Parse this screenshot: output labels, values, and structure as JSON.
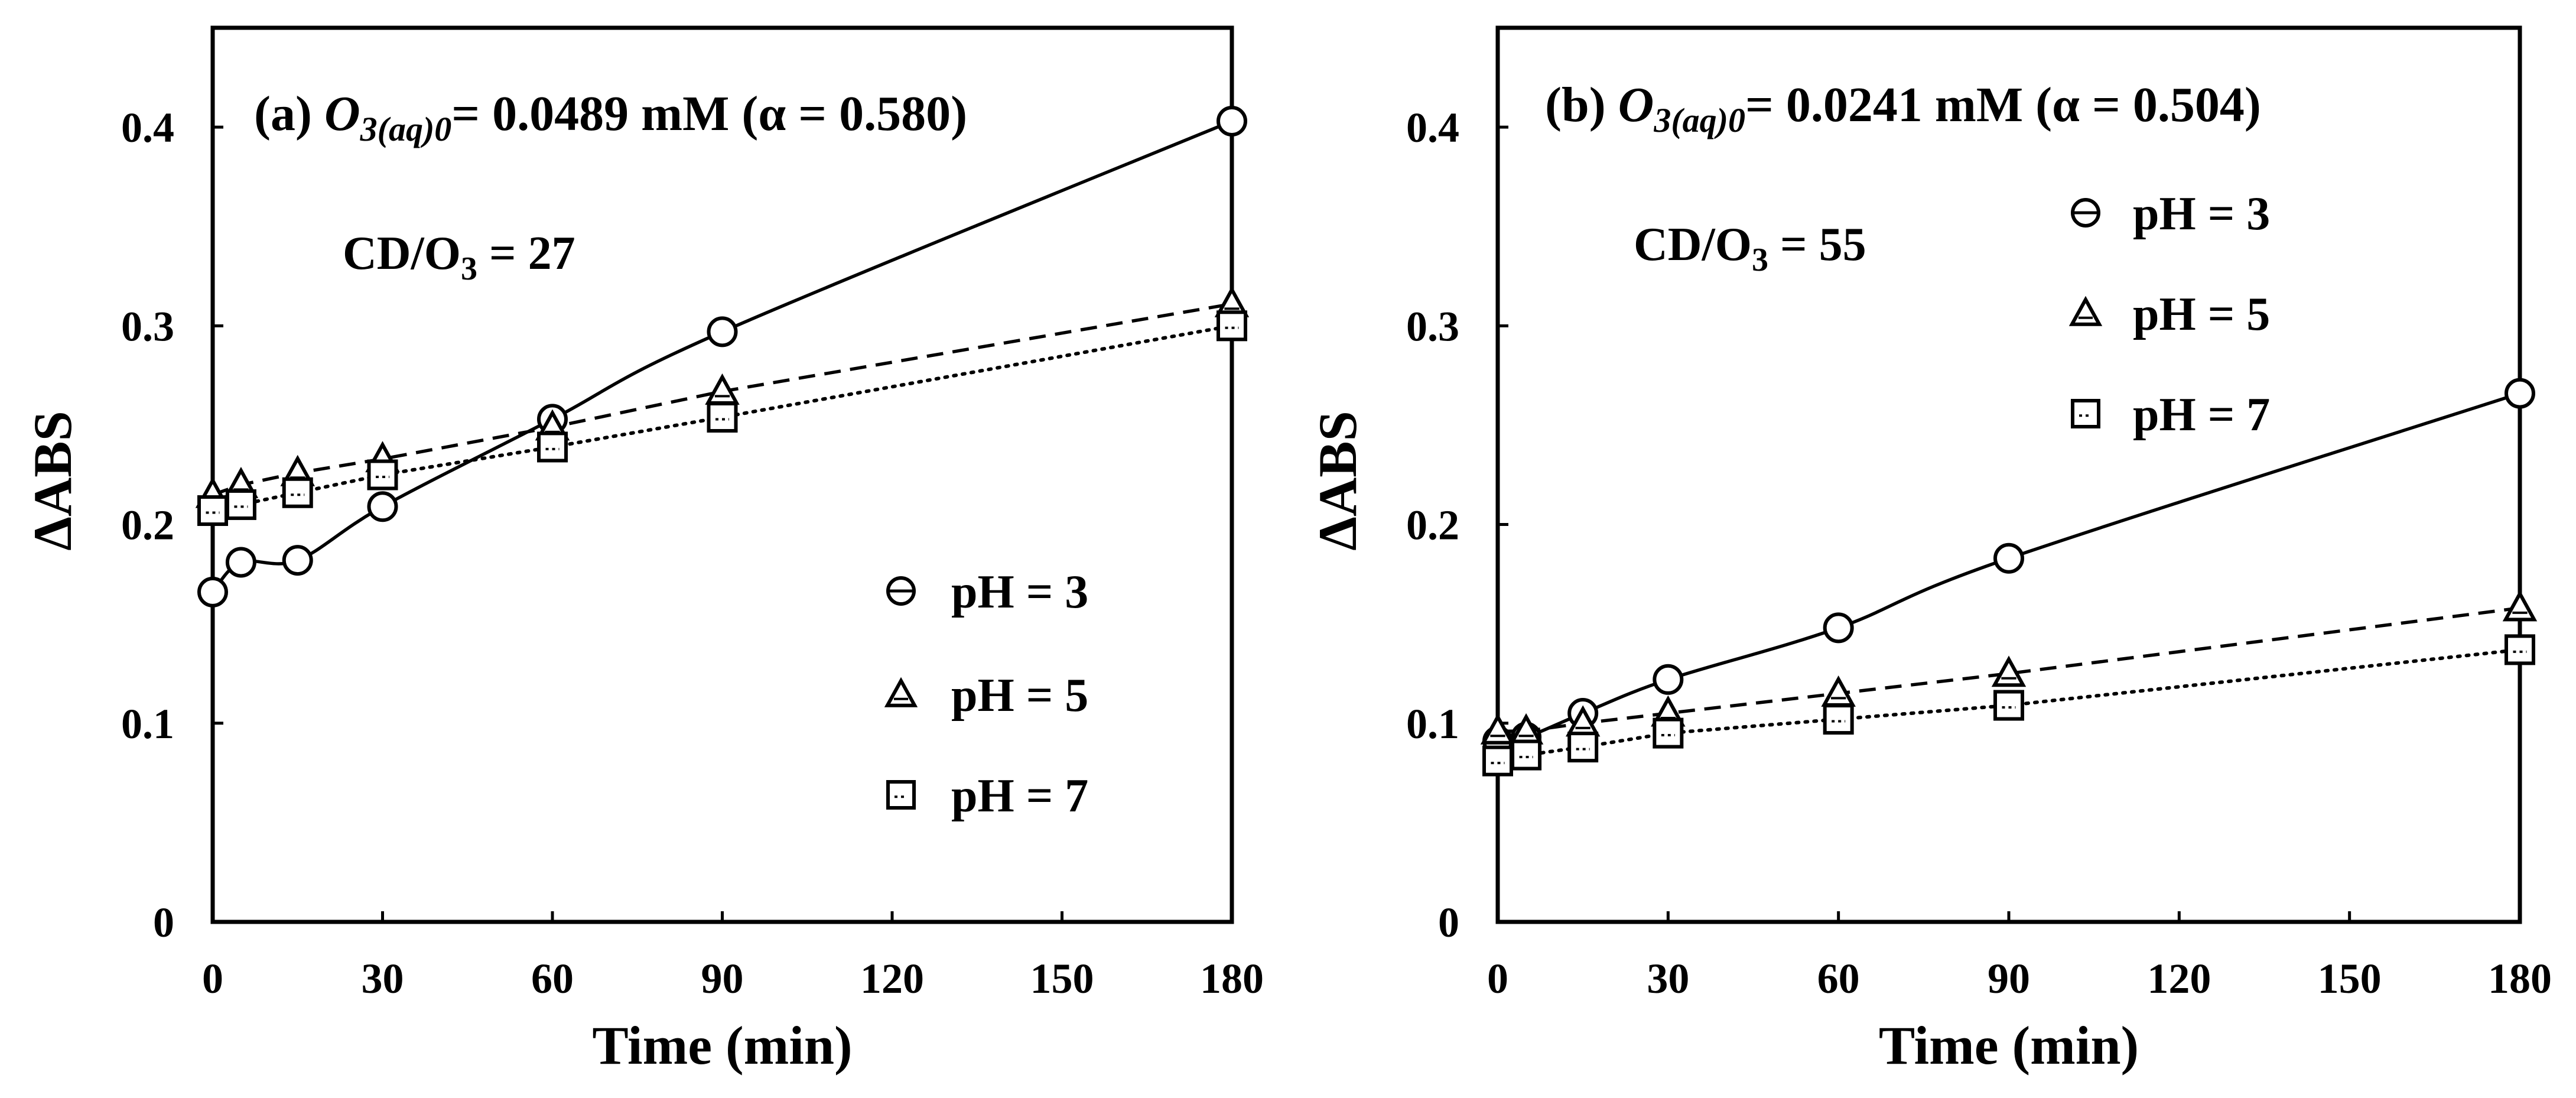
{
  "chart_data": [
    {
      "type": "line",
      "title": {
        "label": "(a)",
        "species": "O",
        "subscript": "3(aq)0",
        "rest": "= 0.0489 mM (α = 0.580)"
      },
      "annotation": {
        "prefix": "CD/O",
        "sub": "3",
        "suffix": " = 27"
      },
      "xlabel": "Time (min)",
      "ylabel": "ΔABS",
      "xlim": [
        0,
        180
      ],
      "ylim": [
        0,
        0.45
      ],
      "xticks": [
        0,
        30,
        60,
        90,
        120,
        150,
        180
      ],
      "yticks": [
        0,
        0.1,
        0.2,
        0.3,
        0.4
      ],
      "ytick_labels": [
        "0",
        "0.1",
        "0.2",
        "0.3",
        "0.4"
      ],
      "legend_position": "lower-right",
      "series": [
        {
          "name": "pH = 3",
          "marker": "circle",
          "line": "solid",
          "x": [
            0,
            5,
            15,
            30,
            60,
            90,
            180
          ],
          "values": [
            0.166,
            0.181,
            0.182,
            0.209,
            0.253,
            0.297,
            0.403
          ]
        },
        {
          "name": "pH = 5",
          "marker": "triangle",
          "line": "dashed",
          "x": [
            0,
            5,
            15,
            30,
            60,
            90,
            180
          ],
          "values": [
            0.215,
            0.22,
            0.226,
            0.233,
            0.249,
            0.267,
            0.311
          ]
        },
        {
          "name": "pH = 7",
          "marker": "square",
          "line": "dotted",
          "x": [
            0,
            5,
            15,
            30,
            60,
            90,
            180
          ],
          "values": [
            0.207,
            0.21,
            0.216,
            0.225,
            0.239,
            0.254,
            0.3
          ]
        }
      ]
    },
    {
      "type": "line",
      "title": {
        "label": "(b)",
        "species": "O",
        "subscript": "3(aq)0",
        "rest": "= 0.0241 mM (α = 0.504)"
      },
      "annotation": {
        "prefix": "CD/O",
        "sub": "3",
        "suffix": " = 55"
      },
      "xlabel": "Time (min)",
      "ylabel": "ΔABS",
      "xlim": [
        0,
        180
      ],
      "ylim": [
        0,
        0.45
      ],
      "xticks": [
        0,
        30,
        60,
        90,
        120,
        150,
        180
      ],
      "yticks": [
        0,
        0.1,
        0.2,
        0.3,
        0.4
      ],
      "ytick_labels": [
        "0",
        "0.1",
        "0.2",
        "0.3",
        "0.4"
      ],
      "legend_position": "upper-center",
      "series": [
        {
          "name": "pH = 3",
          "marker": "circle",
          "line": "solid",
          "x": [
            0,
            5,
            15,
            30,
            60,
            90,
            180
          ],
          "values": [
            0.091,
            0.093,
            0.105,
            0.122,
            0.148,
            0.183,
            0.266
          ]
        },
        {
          "name": "pH = 5",
          "marker": "triangle",
          "line": "dashed",
          "x": [
            0,
            5,
            15,
            30,
            60,
            90,
            180
          ],
          "values": [
            0.096,
            0.096,
            0.1,
            0.105,
            0.115,
            0.125,
            0.158
          ]
        },
        {
          "name": "pH = 7",
          "marker": "square",
          "line": "dotted",
          "x": [
            0,
            5,
            15,
            30,
            60,
            90,
            180
          ],
          "values": [
            0.081,
            0.084,
            0.088,
            0.095,
            0.102,
            0.109,
            0.137
          ]
        }
      ]
    }
  ]
}
